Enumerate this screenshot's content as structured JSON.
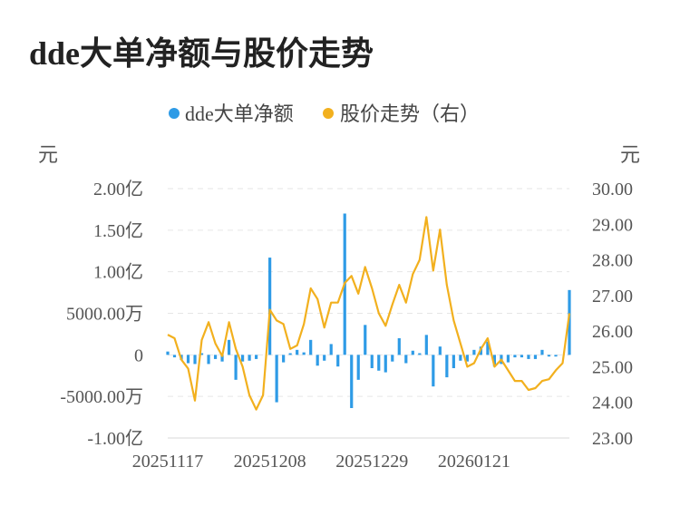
{
  "title": "dde大单净额与股价走势",
  "chart_data": {
    "type": "bar+line",
    "legend": [
      {
        "label": "dde大单净额",
        "color": "#2e9be6",
        "marker": "dot"
      },
      {
        "label": "股价走势（右）",
        "color": "#f2b01e",
        "marker": "dot"
      }
    ],
    "left_unit": "元",
    "right_unit": "元",
    "left_ticks": [
      {
        "value": 20000,
        "label": "2.00亿"
      },
      {
        "value": 15000,
        "label": "1.50亿"
      },
      {
        "value": 10000,
        "label": "1.00亿"
      },
      {
        "value": 5000,
        "label": "5000.00万"
      },
      {
        "value": 0,
        "label": "0"
      },
      {
        "value": -5000,
        "label": "-5000.00万"
      },
      {
        "value": -10000,
        "label": "-1.00亿"
      }
    ],
    "right_ticks": [
      "30.00",
      "29.00",
      "28.00",
      "27.00",
      "26.00",
      "25.00",
      "24.00",
      "23.00"
    ],
    "ylim_left": [
      -10000,
      20000
    ],
    "ylim_right": [
      23,
      30
    ],
    "x_tick_labels": [
      {
        "index": 0,
        "label": "20251117"
      },
      {
        "index": 15,
        "label": "20251208"
      },
      {
        "index": 30,
        "label": "20251229"
      },
      {
        "index": 45,
        "label": "20260121"
      }
    ],
    "grid": true,
    "num_points": 60,
    "bar_series_name": "dde大单净额",
    "bar_values_wan": [
      400,
      -300,
      -600,
      -1000,
      -1100,
      200,
      -1100,
      -500,
      -800,
      1800,
      -3000,
      -800,
      -700,
      -500,
      0,
      11700,
      -5700,
      -900,
      200,
      600,
      300,
      1800,
      -1300,
      -700,
      1300,
      -1400,
      17000,
      -6400,
      -3000,
      3600,
      -1600,
      -1900,
      -2100,
      -800,
      2000,
      -1000,
      500,
      200,
      2400,
      -3800,
      1000,
      -2700,
      -1600,
      -700,
      -800,
      600,
      1000,
      1600,
      -1400,
      -1100,
      -900,
      -300,
      -300,
      -500,
      -500,
      600,
      -200,
      -200,
      0,
      7800
    ],
    "line_series_name": "股价走势（右）",
    "price_values": [
      25.9,
      25.8,
      25.2,
      24.95,
      24.05,
      25.75,
      26.25,
      25.65,
      25.3,
      26.25,
      25.5,
      25.0,
      24.2,
      23.8,
      24.2,
      26.6,
      26.3,
      26.2,
      25.5,
      25.6,
      26.2,
      27.2,
      26.9,
      26.1,
      26.8,
      26.8,
      27.35,
      27.55,
      27.05,
      27.8,
      27.2,
      26.5,
      26.15,
      26.75,
      27.3,
      26.8,
      27.6,
      28.0,
      29.2,
      27.7,
      28.85,
      27.3,
      26.3,
      25.65,
      25.0,
      25.1,
      25.5,
      25.8,
      25.0,
      25.2,
      24.9,
      24.6,
      24.6,
      24.35,
      24.4,
      24.6,
      24.65,
      24.9,
      25.1,
      26.5
    ]
  }
}
